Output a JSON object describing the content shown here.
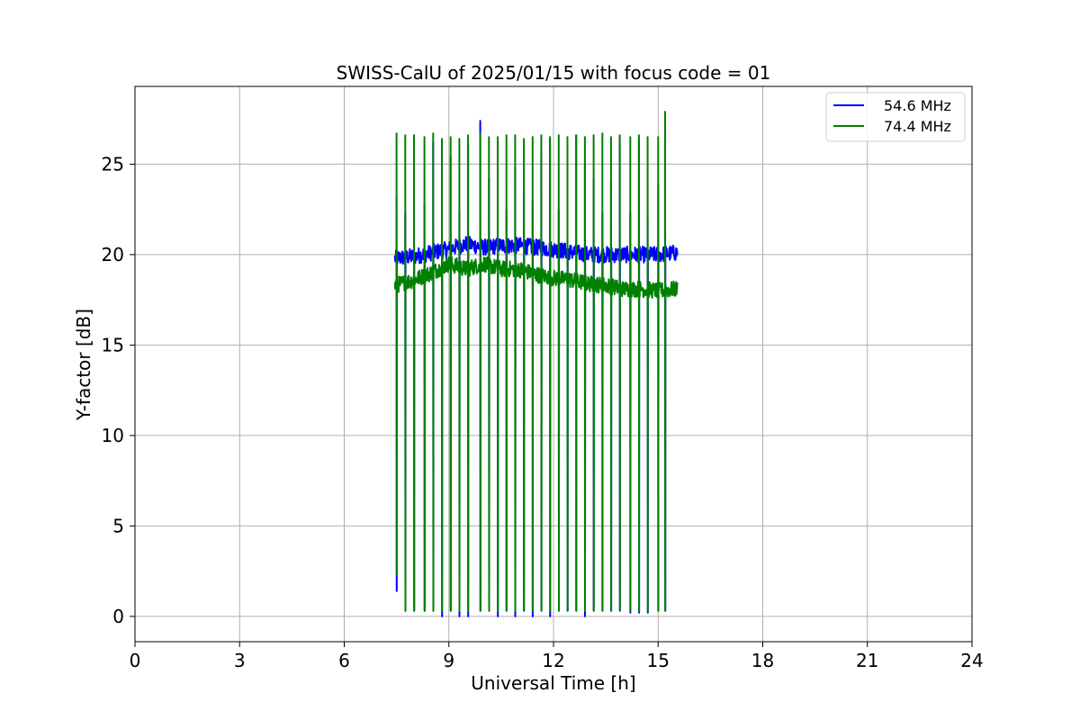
{
  "chart_data": {
    "type": "line",
    "title": "SWISS-CalU of 2025/01/15 with focus code = 01",
    "xlabel": "Universal Time [h]",
    "ylabel": "Y-factor [dB]",
    "xlim": [
      0,
      24
    ],
    "ylim": [
      -1.4,
      29.3
    ],
    "xticks": [
      0,
      3,
      6,
      9,
      12,
      15,
      18,
      21,
      24
    ],
    "yticks": [
      0,
      5,
      10,
      15,
      20,
      25
    ],
    "grid": true,
    "legend_position": "top-right",
    "series": [
      {
        "name": "54.6 MHz",
        "color": "#0000ff",
        "start_hour": 7.45,
        "end_hour": 15.55,
        "baseline_points": [
          [
            7.45,
            19.8
          ],
          [
            8.0,
            19.9
          ],
          [
            9.0,
            20.3
          ],
          [
            9.5,
            20.6
          ],
          [
            10.0,
            20.4
          ],
          [
            10.5,
            20.5
          ],
          [
            11.0,
            20.5
          ],
          [
            12.0,
            20.3
          ],
          [
            13.0,
            20.0
          ],
          [
            14.0,
            20.0
          ],
          [
            15.0,
            20.0
          ],
          [
            15.55,
            20.1
          ]
        ],
        "spike_hours": [
          7.5,
          7.75,
          8.0,
          8.3,
          8.55,
          8.8,
          9.05,
          9.3,
          9.55,
          9.9,
          10.15,
          10.4,
          10.65,
          10.9,
          11.15,
          11.4,
          11.65,
          11.9,
          12.15,
          12.4,
          12.65,
          12.9,
          13.15,
          13.4,
          13.65,
          13.9,
          14.2,
          14.45,
          14.7,
          15.0,
          15.2
        ],
        "spike_peaks": [
          23.1,
          22.3,
          24.4,
          22.8,
          26.2,
          22.6,
          25.4,
          22.4,
          26.1,
          27.4,
          24.2,
          22.8,
          22.5,
          24.8,
          23.5,
          23.0,
          25.6,
          26.4,
          22.5,
          22.2,
          26.6,
          25.0,
          24.2,
          22.3,
          24.0,
          26.5,
          22.3,
          26.4,
          22.0,
          23.9,
          22.4
        ],
        "spike_troughs": [
          1.4,
          0.3,
          0.3,
          0.3,
          0.3,
          0.0,
          0.3,
          0.0,
          0.0,
          0.3,
          0.3,
          0.0,
          0.3,
          0.0,
          0.3,
          0.0,
          0.3,
          0.0,
          0.3,
          0.3,
          0.3,
          0.0,
          0.3,
          0.3,
          0.3,
          0.3,
          0.2,
          0.2,
          0.2,
          0.3,
          0.3
        ]
      },
      {
        "name": "74.4 MHz",
        "color": "#008000",
        "start_hour": 7.45,
        "end_hour": 15.55,
        "baseline_points": [
          [
            7.45,
            18.3
          ],
          [
            8.0,
            18.6
          ],
          [
            8.5,
            19.0
          ],
          [
            9.0,
            19.5
          ],
          [
            9.5,
            19.2
          ],
          [
            10.0,
            19.5
          ],
          [
            10.5,
            19.2
          ],
          [
            11.0,
            19.2
          ],
          [
            11.5,
            18.9
          ],
          [
            12.0,
            18.7
          ],
          [
            12.5,
            18.6
          ],
          [
            13.0,
            18.4
          ],
          [
            13.5,
            18.3
          ],
          [
            14.0,
            18.1
          ],
          [
            14.5,
            18.1
          ],
          [
            15.0,
            18.0
          ],
          [
            15.55,
            18.1
          ]
        ],
        "spike_hours": [
          7.5,
          7.75,
          8.0,
          8.3,
          8.55,
          8.8,
          9.05,
          9.3,
          9.55,
          9.9,
          10.15,
          10.4,
          10.65,
          10.9,
          11.15,
          11.4,
          11.65,
          11.9,
          12.15,
          12.4,
          12.65,
          12.9,
          13.15,
          13.4,
          13.65,
          13.9,
          14.2,
          14.45,
          14.7,
          15.0,
          15.2
        ],
        "spike_peaks": [
          26.7,
          26.6,
          26.6,
          26.5,
          26.7,
          26.4,
          26.5,
          26.4,
          26.6,
          26.7,
          26.5,
          26.5,
          26.6,
          26.6,
          26.4,
          26.5,
          26.6,
          26.5,
          26.6,
          26.5,
          26.6,
          26.5,
          26.6,
          26.7,
          26.5,
          26.6,
          26.5,
          26.6,
          26.5,
          26.5,
          27.9
        ],
        "spike_troughs": [
          2.3,
          0.3,
          0.3,
          0.3,
          0.3,
          0.3,
          0.3,
          0.3,
          0.3,
          0.3,
          0.3,
          0.3,
          0.3,
          0.3,
          0.3,
          0.3,
          0.3,
          0.3,
          0.3,
          0.3,
          0.3,
          0.3,
          0.3,
          0.3,
          0.3,
          0.3,
          0.3,
          0.3,
          0.3,
          0.3,
          0.3
        ]
      }
    ]
  }
}
